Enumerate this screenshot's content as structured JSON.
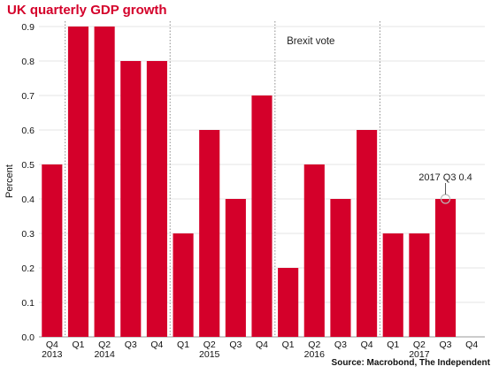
{
  "chart_data": {
    "type": "bar",
    "title": "UK quarterly GDP growth",
    "ylabel": "Percent",
    "xlabel": "",
    "ylim": [
      0,
      0.9
    ],
    "yticks": [
      "0.0",
      "0.1",
      "0.2",
      "0.3",
      "0.4",
      "0.5",
      "0.6",
      "0.7",
      "0.8",
      "0.9"
    ],
    "categories": [
      "Q4",
      "Q1",
      "Q2",
      "Q3",
      "Q4",
      "Q1",
      "Q2",
      "Q3",
      "Q4",
      "Q1",
      "Q2",
      "Q3",
      "Q4",
      "Q1",
      "Q2",
      "Q3",
      "Q4"
    ],
    "years": [
      "2013",
      "",
      "2014",
      "",
      "",
      "",
      "2015",
      "",
      "",
      "",
      "2016",
      "",
      "",
      "",
      "2017",
      "",
      ""
    ],
    "values": [
      0.5,
      0.9,
      0.9,
      0.8,
      0.8,
      0.3,
      0.6,
      0.4,
      0.7,
      0.2,
      0.5,
      0.4,
      0.6,
      0.3,
      0.3,
      0.4,
      null
    ],
    "bar_color": "#d4002a",
    "grid": true,
    "annotations": [
      {
        "text": "Brexit vote"
      },
      {
        "text": "2017 Q3 0.4"
      }
    ],
    "source": "Source: Macrobond, The Independent"
  }
}
